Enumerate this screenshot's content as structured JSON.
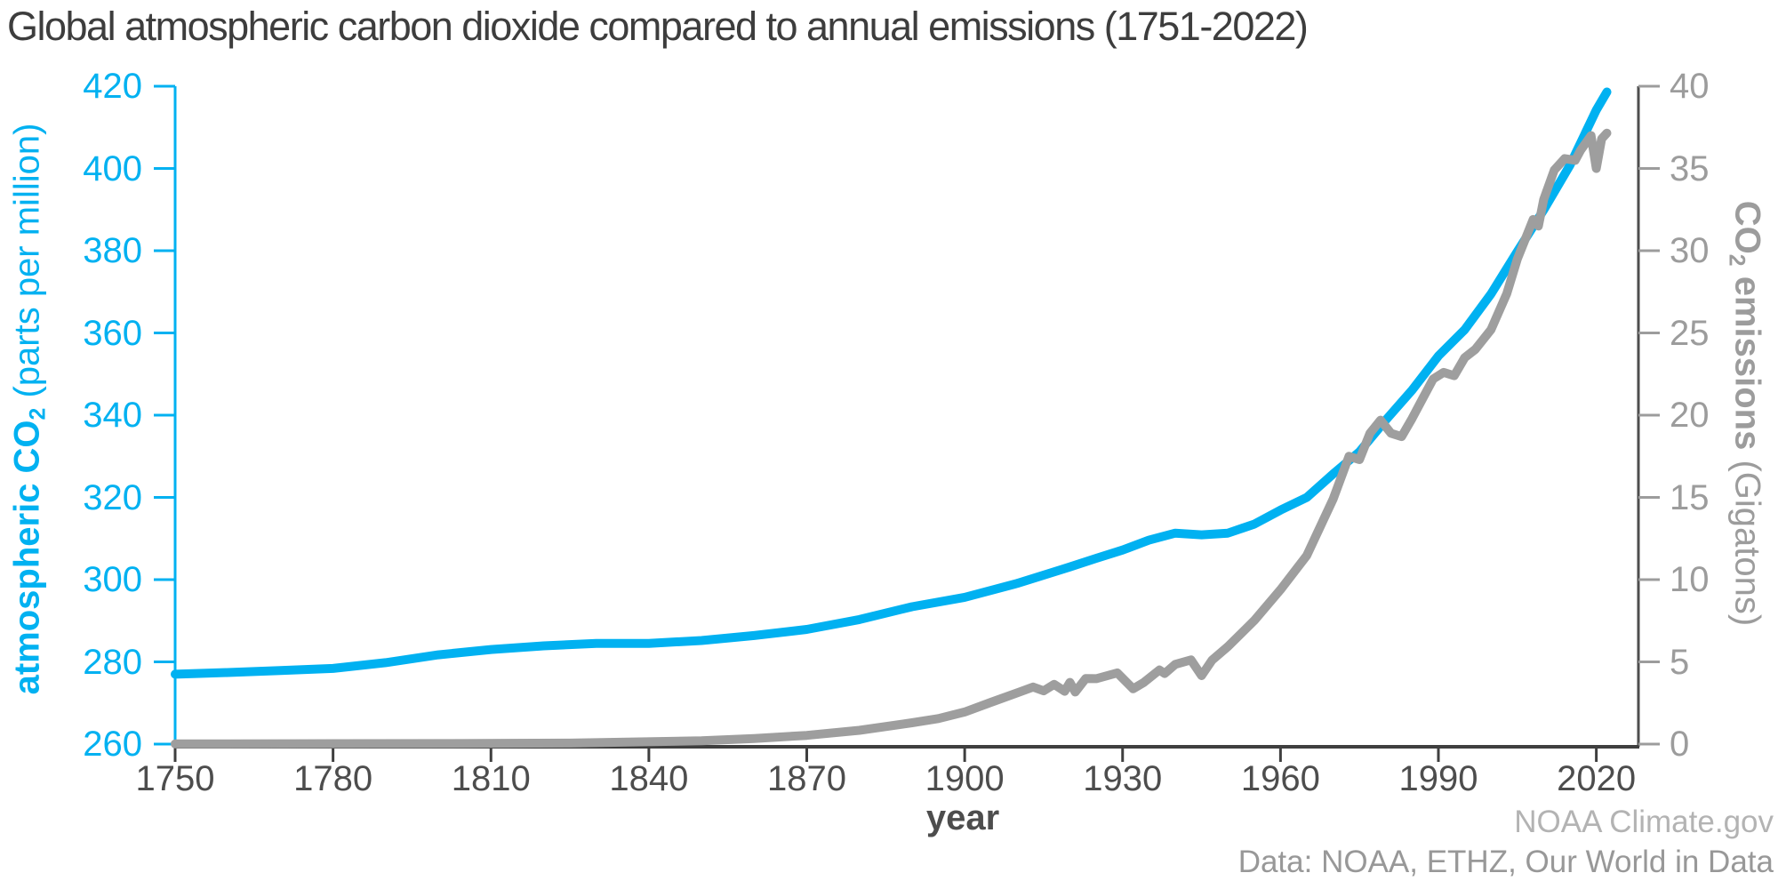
{
  "title": "Global atmospheric carbon dioxide compared to annual emissions (1751-2022)",
  "x_axis_label": "year",
  "left_axis_label": {
    "name": "atmospheric CO",
    "sub": "2",
    "units": " (parts per million)"
  },
  "right_axis_label": {
    "name1": "CO",
    "sub": "2",
    "name2": " emissions",
    "units": " (Gigatons)"
  },
  "attribution": {
    "line1": "NOAA Climate.gov",
    "line2": "Data: NOAA, ETHZ, Our World in Data"
  },
  "colors": {
    "background": "#ffffff",
    "co2_line": "#00b1f1",
    "emissions_line": "#9e9e9e",
    "left_axis": "#00b1f1",
    "right_axis_line": "#4e4e4e",
    "right_tick_text": "#9c9c9c",
    "axis_label_right": "#9c9c9c",
    "x_axis_line": "#3f3f3f",
    "x_tick_text": "#4d4d4d",
    "title_text": "#3d3d3d",
    "attribution_1": "#b3b3b3",
    "attribution_2": "#989898"
  },
  "chart_data": {
    "type": "line",
    "title": "Global atmospheric carbon dioxide compared to annual emissions (1751-2022)",
    "xlabel": "year",
    "x_range": [
      1750,
      2028
    ],
    "x_ticks": [
      1750,
      1780,
      1810,
      1840,
      1870,
      1900,
      1930,
      1960,
      1990,
      2020
    ],
    "grid": false,
    "legend": "none",
    "left_axis": {
      "label": "atmospheric CO2 (parts per million)",
      "range": [
        260,
        420
      ],
      "ticks": [
        260,
        280,
        300,
        320,
        340,
        360,
        380,
        400,
        420
      ]
    },
    "right_axis": {
      "label": "CO2 emissions (Gigatons)",
      "range": [
        0,
        40
      ],
      "ticks": [
        0,
        5,
        10,
        15,
        20,
        25,
        30,
        35,
        40
      ]
    },
    "series": [
      {
        "name": "atmospheric CO2",
        "units": "parts per million",
        "axis": "left",
        "color_key": "co2_line",
        "points": [
          [
            1750,
            277.0
          ],
          [
            1760,
            277.4
          ],
          [
            1770,
            277.9
          ],
          [
            1780,
            278.4
          ],
          [
            1790,
            279.8
          ],
          [
            1800,
            281.7
          ],
          [
            1810,
            283.0
          ],
          [
            1820,
            283.9
          ],
          [
            1830,
            284.5
          ],
          [
            1840,
            284.5
          ],
          [
            1850,
            285.2
          ],
          [
            1860,
            286.4
          ],
          [
            1870,
            287.9
          ],
          [
            1880,
            290.3
          ],
          [
            1890,
            293.4
          ],
          [
            1900,
            295.7
          ],
          [
            1910,
            299.1
          ],
          [
            1920,
            303.1
          ],
          [
            1925,
            305.2
          ],
          [
            1930,
            307.2
          ],
          [
            1935,
            309.6
          ],
          [
            1940,
            311.3
          ],
          [
            1945,
            310.9
          ],
          [
            1950,
            311.3
          ],
          [
            1955,
            313.5
          ],
          [
            1960,
            316.9
          ],
          [
            1965,
            320.0
          ],
          [
            1970,
            325.7
          ],
          [
            1975,
            331.1
          ],
          [
            1980,
            338.8
          ],
          [
            1985,
            346.1
          ],
          [
            1990,
            354.4
          ],
          [
            1995,
            360.8
          ],
          [
            2000,
            369.5
          ],
          [
            2005,
            379.8
          ],
          [
            2010,
            389.9
          ],
          [
            2015,
            400.8
          ],
          [
            2020,
            414.2
          ],
          [
            2022,
            418.6
          ]
        ]
      },
      {
        "name": "CO2 emissions",
        "units": "Gigatons",
        "axis": "right",
        "color_key": "emissions_line",
        "points": [
          [
            1750,
            0.01
          ],
          [
            1800,
            0.03
          ],
          [
            1825,
            0.06
          ],
          [
            1850,
            0.2
          ],
          [
            1860,
            0.34
          ],
          [
            1870,
            0.53
          ],
          [
            1880,
            0.84
          ],
          [
            1890,
            1.3
          ],
          [
            1895,
            1.55
          ],
          [
            1900,
            1.95
          ],
          [
            1905,
            2.54
          ],
          [
            1910,
            3.12
          ],
          [
            1913,
            3.47
          ],
          [
            1915,
            3.24
          ],
          [
            1917,
            3.63
          ],
          [
            1919,
            3.21
          ],
          [
            1920,
            3.75
          ],
          [
            1921,
            3.17
          ],
          [
            1923,
            3.99
          ],
          [
            1925,
            3.98
          ],
          [
            1929,
            4.33
          ],
          [
            1932,
            3.36
          ],
          [
            1934,
            3.74
          ],
          [
            1937,
            4.51
          ],
          [
            1938,
            4.29
          ],
          [
            1940,
            4.85
          ],
          [
            1943,
            5.12
          ],
          [
            1945,
            4.16
          ],
          [
            1947,
            5.1
          ],
          [
            1950,
            5.93
          ],
          [
            1955,
            7.51
          ],
          [
            1960,
            9.39
          ],
          [
            1965,
            11.47
          ],
          [
            1970,
            14.9
          ],
          [
            1973,
            17.5
          ],
          [
            1975,
            17.3
          ],
          [
            1977,
            18.9
          ],
          [
            1979,
            19.7
          ],
          [
            1981,
            18.9
          ],
          [
            1983,
            18.7
          ],
          [
            1985,
            19.8
          ],
          [
            1987,
            21.0
          ],
          [
            1989,
            22.2
          ],
          [
            1991,
            22.6
          ],
          [
            1993,
            22.4
          ],
          [
            1995,
            23.5
          ],
          [
            1997,
            24.0
          ],
          [
            2000,
            25.2
          ],
          [
            2003,
            27.4
          ],
          [
            2005,
            29.5
          ],
          [
            2007,
            31.1
          ],
          [
            2008,
            31.9
          ],
          [
            2009,
            31.5
          ],
          [
            2010,
            33.1
          ],
          [
            2012,
            34.9
          ],
          [
            2014,
            35.6
          ],
          [
            2016,
            35.5
          ],
          [
            2017,
            36.1
          ],
          [
            2019,
            37.0
          ],
          [
            2020,
            35.0
          ],
          [
            2021,
            36.8
          ],
          [
            2022,
            37.15
          ]
        ]
      }
    ]
  }
}
